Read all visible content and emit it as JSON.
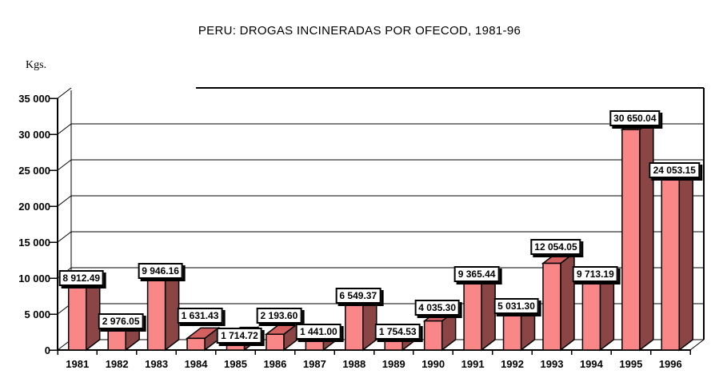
{
  "title": "PERU: DROGAS INCINERADAS POR OFECOD, 1981-96",
  "y_axis": {
    "unit_label": "Kgs.",
    "tick_labels": [
      "0",
      "5 000",
      "10 000",
      "15 000",
      "20 000",
      "25 000",
      "30 000",
      "35 000"
    ]
  },
  "chart_data": {
    "type": "bar",
    "title": "PERU: DROGAS INCINERADAS POR OFECOD, 1981-96",
    "xlabel": "",
    "ylabel": "Kgs.",
    "style": "3d-bar",
    "grid": true,
    "legend": false,
    "ylim": [
      0,
      35000
    ],
    "ytick_interval": 5000,
    "categories": [
      "1981",
      "1982",
      "1983",
      "1984",
      "1985",
      "1986",
      "1987",
      "1988",
      "1989",
      "1990",
      "1991",
      "1992",
      "1993",
      "1994",
      "1995",
      "1996"
    ],
    "values": [
      8912.49,
      2976.05,
      9946.16,
      1631.43,
      1714.72,
      2193.6,
      1441.0,
      6549.37,
      1754.53,
      4035.3,
      9365.44,
      5031.3,
      12054.05,
      9713.19,
      30650.04,
      24053.15
    ],
    "data_labels": [
      "8 912.49",
      "2 976.05",
      "9 946.16",
      "1 631.43",
      "1 714.72",
      "2 193.60",
      "1 441.00",
      "6 549.37",
      "1 754.53",
      "4 035.30",
      "9 365.44",
      "5 031.30",
      "12 054.05",
      "9 713.19",
      "30 650.04",
      "24 053.15"
    ],
    "colors": {
      "bar_front": "#F98787",
      "bar_side": "#8B4545",
      "bar_top": "#D56060",
      "outline": "#000000",
      "background": "#FFFFFF"
    }
  }
}
